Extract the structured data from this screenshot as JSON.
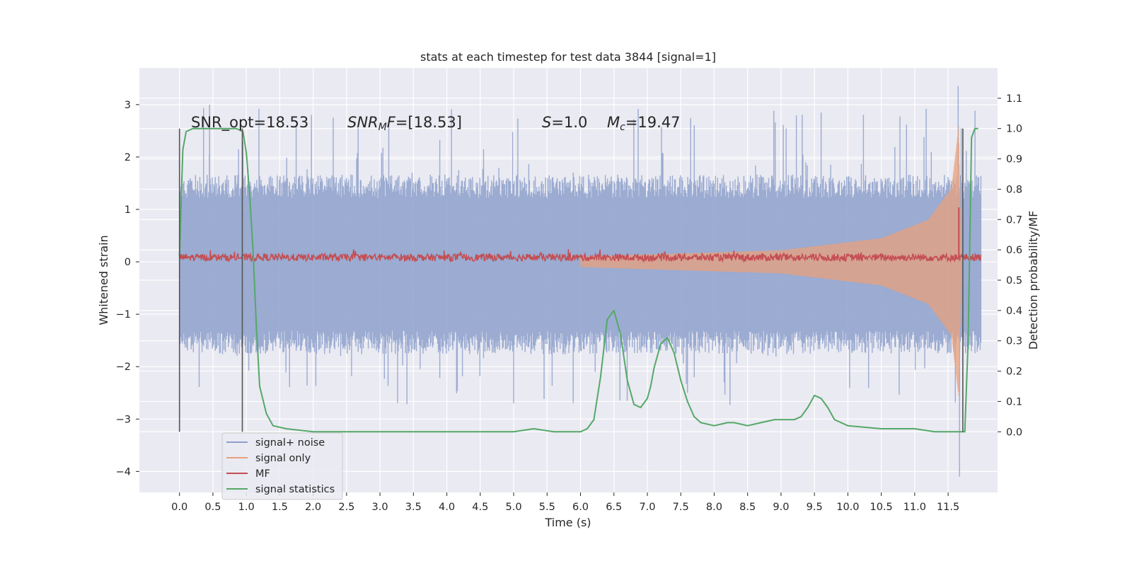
{
  "chart_data": {
    "type": "line",
    "title": "stats at each timestep for test data 3844 [signal=1]",
    "xlabel": "Time (s)",
    "ylabel_left": "Whitened strain",
    "ylabel_right": "Detection probability/MF",
    "xlim": [
      -0.6,
      12.24
    ],
    "ylim_left": [
      -4.4,
      3.7
    ],
    "ylim_right": [
      -0.2,
      1.2
    ],
    "x_ticks": [
      0.0,
      0.5,
      1.0,
      1.5,
      2.0,
      2.5,
      3.0,
      3.5,
      4.0,
      4.5,
      5.0,
      5.5,
      6.0,
      6.5,
      7.0,
      7.5,
      8.0,
      8.5,
      9.0,
      9.5,
      10.0,
      10.5,
      11.0,
      11.5
    ],
    "x_tick_labels": [
      "0.0",
      "0.5",
      "1.0",
      "1.5",
      "2.0",
      "2.5",
      "3.0",
      "3.5",
      "4.0",
      "4.5",
      "5.0",
      "5.5",
      "6.0",
      "6.5",
      "7.0",
      "7.5",
      "8.0",
      "8.5",
      "9.0",
      "9.5",
      "10.0",
      "10.5",
      "11.0",
      "11.5"
    ],
    "y_left_ticks": [
      3,
      2,
      1,
      0,
      -1,
      -2,
      -3,
      -4
    ],
    "y_left_tick_labels": [
      "3",
      "2",
      "1",
      "0",
      "−1",
      "−2",
      "−3",
      "−4"
    ],
    "y_right_ticks": [
      1.1,
      1.0,
      0.9,
      0.8,
      0.7,
      0.6,
      0.5,
      0.4,
      0.3,
      0.2,
      0.1,
      0.0
    ],
    "y_right_tick_labels": [
      "1.1",
      "1.0",
      "0.9",
      "0.8",
      "0.7",
      "0.6",
      "0.5",
      "0.4",
      "0.3",
      "0.2",
      "0.1",
      "0.0"
    ],
    "grid": true,
    "legend_position": "bottom-left",
    "annotations": {
      "snr_opt": "SNR_opt=18.53",
      "snr_mf_main": "SNR",
      "snr_mf_sub": "M",
      "snr_mf_tail": "F=[18.53]",
      "s_main": "S",
      "s_tail": "=1.0",
      "mc_main": "M",
      "mc_sub": "c",
      "mc_tail": "=19.47"
    },
    "vertical_markers": [
      {
        "x": 0.0,
        "y_right_range": [
          0.0,
          1.0
        ]
      },
      {
        "x": 0.94,
        "y_right_range": [
          0.0,
          1.0
        ]
      },
      {
        "x": 11.72,
        "y_right_range": [
          0.0,
          1.0
        ]
      }
    ],
    "series": [
      {
        "name": "signal+ noise",
        "axis": "left",
        "color": "#8da0cb",
        "x_range": [
          0.0,
          11.99
        ],
        "noise_band_hi": 1.35,
        "noise_band_lo": -1.45,
        "spike_max": 3.35,
        "spike_min": -4.1,
        "notable_spikes": [
          {
            "x": 0.45,
            "y": 3.0
          },
          {
            "x": 6.55,
            "y": 1.55
          },
          {
            "x": 7.6,
            "y": -2.5
          },
          {
            "x": 5.0,
            "y": -2.7
          },
          {
            "x": 11.65,
            "y": 3.35
          },
          {
            "x": 11.67,
            "y": -4.1
          },
          {
            "x": 9.6,
            "y": 2.85
          },
          {
            "x": 2.3,
            "y": 2.75
          }
        ]
      },
      {
        "name": "signal only",
        "axis": "left",
        "color": "#e8a07c",
        "description_points": [
          {
            "x": 0.0,
            "amplitude": 0.0
          },
          {
            "x": 6.0,
            "amplitude": 0.1
          },
          {
            "x": 9.0,
            "amplitude": 0.22
          },
          {
            "x": 10.5,
            "amplitude": 0.45
          },
          {
            "x": 11.2,
            "amplitude": 0.8
          },
          {
            "x": 11.55,
            "amplitude": 1.4
          },
          {
            "x": 11.66,
            "amplitude": 2.6
          },
          {
            "x": 11.7,
            "amplitude": 0.0
          }
        ]
      },
      {
        "name": "MF",
        "axis": "right",
        "color": "#c44e52",
        "baseline": 0.575,
        "jitter": 0.012,
        "peak": {
          "x": 11.66,
          "y": 0.74
        }
      },
      {
        "name": "signal statistics",
        "axis": "right",
        "color": "#55a868",
        "x": [
          0.0,
          0.05,
          0.1,
          0.2,
          0.35,
          0.5,
          0.7,
          0.85,
          0.95,
          1.0,
          1.05,
          1.1,
          1.15,
          1.2,
          1.3,
          1.4,
          1.6,
          2.0,
          2.5,
          3.0,
          3.5,
          4.0,
          4.5,
          5.0,
          5.3,
          5.6,
          5.8,
          6.0,
          6.1,
          6.2,
          6.3,
          6.4,
          6.5,
          6.6,
          6.7,
          6.8,
          6.9,
          7.0,
          7.05,
          7.1,
          7.2,
          7.3,
          7.4,
          7.5,
          7.6,
          7.7,
          7.8,
          8.0,
          8.2,
          8.3,
          8.5,
          8.7,
          8.9,
          9.0,
          9.2,
          9.3,
          9.4,
          9.5,
          9.6,
          9.7,
          9.8,
          10.0,
          10.5,
          11.0,
          11.3,
          11.5,
          11.6,
          11.65,
          11.7,
          11.75,
          11.8,
          11.85,
          11.9,
          11.95
        ],
        "y": [
          0.58,
          0.93,
          0.99,
          1.0,
          1.0,
          1.0,
          1.0,
          1.0,
          0.99,
          0.92,
          0.78,
          0.6,
          0.35,
          0.15,
          0.06,
          0.02,
          0.01,
          0.0,
          0.0,
          0.0,
          0.0,
          0.0,
          0.0,
          0.0,
          0.01,
          0.0,
          0.0,
          0.0,
          0.01,
          0.04,
          0.18,
          0.37,
          0.4,
          0.32,
          0.17,
          0.09,
          0.08,
          0.11,
          0.15,
          0.21,
          0.29,
          0.31,
          0.26,
          0.17,
          0.1,
          0.05,
          0.03,
          0.02,
          0.03,
          0.03,
          0.02,
          0.03,
          0.04,
          0.04,
          0.04,
          0.05,
          0.08,
          0.12,
          0.11,
          0.08,
          0.04,
          0.02,
          0.01,
          0.01,
          0.0,
          0.0,
          0.0,
          0.0,
          0.0,
          0.0,
          0.3,
          0.97,
          1.0,
          1.0
        ]
      }
    ]
  }
}
